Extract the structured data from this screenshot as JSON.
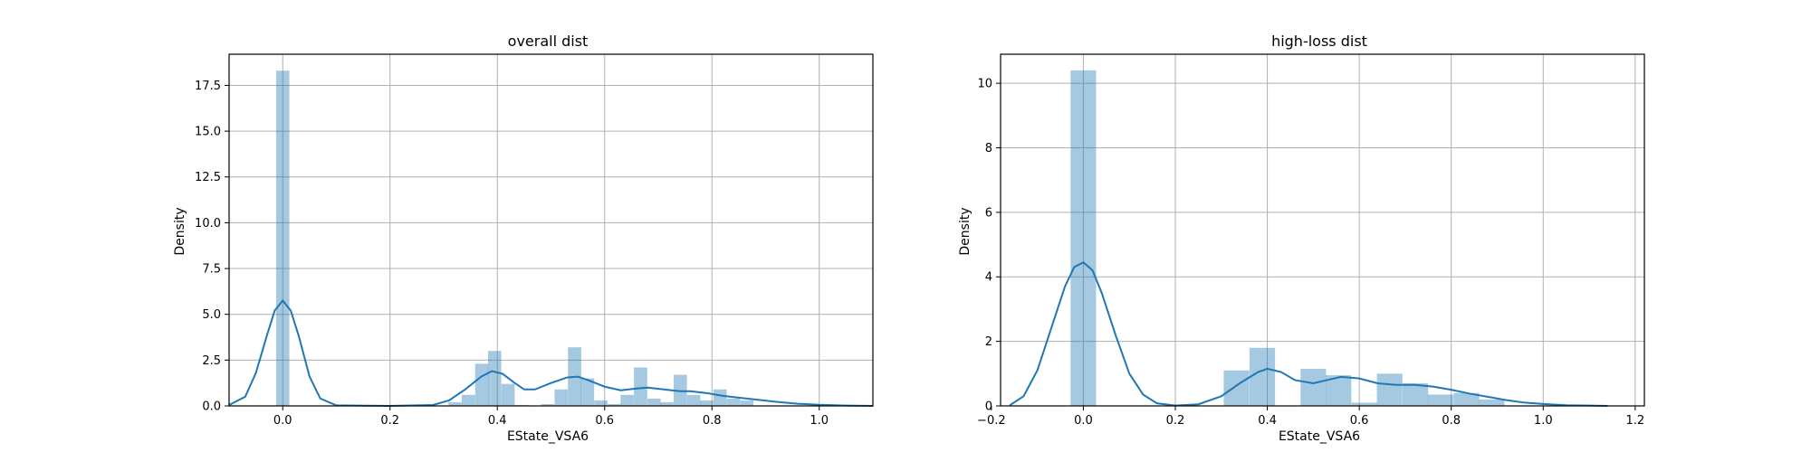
{
  "chart_data": [
    {
      "type": "histogram+kde",
      "title": "overall dist",
      "xlabel": "EState_VSA6",
      "ylabel": "Density",
      "xlim": [
        -0.1,
        1.1
      ],
      "ylim": [
        0,
        19.2
      ],
      "xticks": [
        0.0,
        0.2,
        0.4,
        0.6,
        0.8,
        1.0
      ],
      "xtick_labels": [
        "0.0",
        "0.2",
        "0.4",
        "0.6",
        "0.8",
        "1.0"
      ],
      "yticks": [
        0,
        2.5,
        5.0,
        7.5,
        10.0,
        12.5,
        15.0,
        17.5
      ],
      "ytick_labels": [
        "0.0",
        "2.5",
        "5.0",
        "7.5",
        "10.0",
        "12.5",
        "15.0",
        "17.5"
      ],
      "grid": true,
      "bin_width": 0.0247,
      "bins": [
        {
          "x": 0.0,
          "h": 18.3
        },
        {
          "x": 0.321,
          "h": 0.2
        },
        {
          "x": 0.346,
          "h": 0.6
        },
        {
          "x": 0.371,
          "h": 2.3
        },
        {
          "x": 0.395,
          "h": 3.0
        },
        {
          "x": 0.42,
          "h": 1.2
        },
        {
          "x": 0.445,
          "h": 0.05
        },
        {
          "x": 0.494,
          "h": 0.1
        },
        {
          "x": 0.519,
          "h": 0.9
        },
        {
          "x": 0.544,
          "h": 3.2
        },
        {
          "x": 0.568,
          "h": 1.5
        },
        {
          "x": 0.593,
          "h": 0.3
        },
        {
          "x": 0.618,
          "h": 0.1
        },
        {
          "x": 0.642,
          "h": 0.6
        },
        {
          "x": 0.667,
          "h": 2.1
        },
        {
          "x": 0.692,
          "h": 0.4
        },
        {
          "x": 0.716,
          "h": 0.2
        },
        {
          "x": 0.741,
          "h": 1.7
        },
        {
          "x": 0.766,
          "h": 0.6
        },
        {
          "x": 0.79,
          "h": 0.3
        },
        {
          "x": 0.815,
          "h": 0.9
        },
        {
          "x": 0.84,
          "h": 0.4
        },
        {
          "x": 0.865,
          "h": 0.3
        }
      ],
      "kde": {
        "x": [
          -0.1,
          -0.07,
          -0.05,
          -0.03,
          -0.015,
          0.0,
          0.015,
          0.03,
          0.05,
          0.07,
          0.1,
          0.2,
          0.28,
          0.31,
          0.34,
          0.37,
          0.39,
          0.41,
          0.43,
          0.45,
          0.47,
          0.5,
          0.53,
          0.55,
          0.57,
          0.6,
          0.63,
          0.66,
          0.68,
          0.71,
          0.74,
          0.76,
          0.79,
          0.82,
          0.85,
          0.88,
          0.92,
          0.96,
          1.0,
          1.05,
          1.1
        ],
        "y": [
          0.05,
          0.5,
          1.8,
          3.8,
          5.2,
          5.75,
          5.2,
          3.8,
          1.6,
          0.4,
          0.03,
          0.0,
          0.05,
          0.3,
          0.9,
          1.6,
          1.9,
          1.75,
          1.3,
          0.9,
          0.9,
          1.25,
          1.55,
          1.6,
          1.4,
          1.05,
          0.85,
          0.95,
          1.0,
          0.9,
          0.8,
          0.8,
          0.7,
          0.55,
          0.45,
          0.35,
          0.22,
          0.12,
          0.06,
          0.02,
          0.0
        ]
      }
    },
    {
      "type": "histogram+kde",
      "title": "high-loss dist",
      "xlabel": "EState_VSA6",
      "ylabel": "Density",
      "xlim": [
        -0.18,
        1.22
      ],
      "ylim": [
        0,
        10.9
      ],
      "xticks": [
        -0.2,
        0.0,
        0.2,
        0.4,
        0.6,
        0.8,
        1.0,
        1.2
      ],
      "xtick_labels": [
        "−0.2",
        "0.0",
        "0.2",
        "0.4",
        "0.6",
        "0.8",
        "1.0",
        "1.2"
      ],
      "yticks": [
        0,
        2,
        4,
        6,
        8,
        10
      ],
      "ytick_labels": [
        "0",
        "2",
        "4",
        "6",
        "8",
        "10"
      ],
      "grid": true,
      "bin_width": 0.0555,
      "bins": [
        {
          "x": 0.0,
          "h": 10.4
        },
        {
          "x": 0.333,
          "h": 1.1
        },
        {
          "x": 0.389,
          "h": 1.8
        },
        {
          "x": 0.5,
          "h": 1.15
        },
        {
          "x": 0.555,
          "h": 0.95
        },
        {
          "x": 0.611,
          "h": 0.1
        },
        {
          "x": 0.666,
          "h": 1.0
        },
        {
          "x": 0.722,
          "h": 0.7
        },
        {
          "x": 0.777,
          "h": 0.35
        },
        {
          "x": 0.833,
          "h": 0.4
        },
        {
          "x": 0.888,
          "h": 0.2
        }
      ],
      "kde": {
        "x": [
          -0.16,
          -0.13,
          -0.1,
          -0.07,
          -0.04,
          -0.02,
          0.0,
          0.02,
          0.04,
          0.07,
          0.1,
          0.13,
          0.16,
          0.2,
          0.25,
          0.3,
          0.34,
          0.38,
          0.4,
          0.43,
          0.46,
          0.5,
          0.53,
          0.56,
          0.6,
          0.64,
          0.68,
          0.72,
          0.76,
          0.8,
          0.84,
          0.88,
          0.92,
          0.96,
          1.0,
          1.05,
          1.1,
          1.14
        ],
        "y": [
          0.02,
          0.3,
          1.1,
          2.4,
          3.7,
          4.3,
          4.45,
          4.2,
          3.5,
          2.2,
          1.0,
          0.35,
          0.08,
          0.01,
          0.05,
          0.3,
          0.7,
          1.05,
          1.15,
          1.05,
          0.8,
          0.7,
          0.8,
          0.9,
          0.85,
          0.7,
          0.65,
          0.65,
          0.6,
          0.5,
          0.38,
          0.28,
          0.18,
          0.1,
          0.06,
          0.02,
          0.01,
          0.0
        ]
      }
    }
  ]
}
